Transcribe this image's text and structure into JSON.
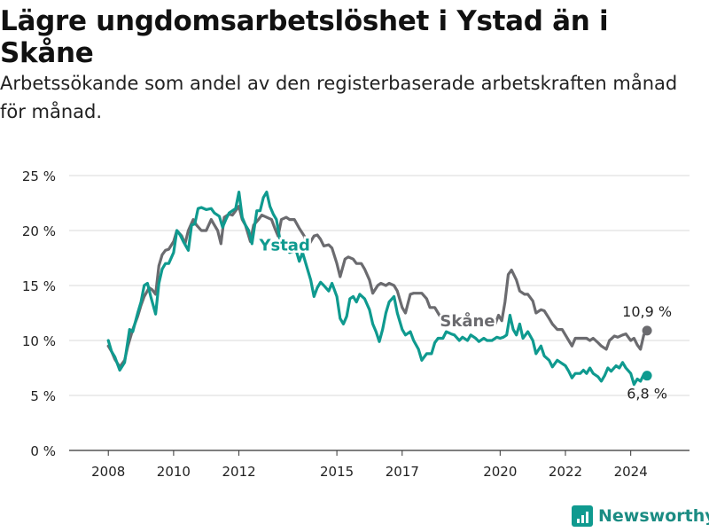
{
  "title": "Lägre ungdomsarbetslöshet i Ystad än i Skåne",
  "subtitle": "Arbetssökande som andel av den registerbaserade arbetskraften månad för månad.",
  "brand": "Newsworthy",
  "colors": {
    "ystad": "#0f9a8f",
    "skane": "#6b6b6f",
    "grid": "#d9d9d9",
    "axis": "#333333"
  },
  "chart_data": {
    "type": "line",
    "title": "Lägre ungdomsarbetslöshet i Ystad än i Skåne",
    "xlabel": "",
    "ylabel": "",
    "xlim": [
      2006.8,
      2025.8
    ],
    "ylim": [
      0,
      25
    ],
    "yticks": [
      {
        "value": 0,
        "label": "0 %"
      },
      {
        "value": 5,
        "label": "5 %"
      },
      {
        "value": 10,
        "label": "10 %"
      },
      {
        "value": 15,
        "label": "15 %"
      },
      {
        "value": 20,
        "label": "20 %"
      },
      {
        "value": 25,
        "label": "25 %"
      }
    ],
    "xticks": [
      {
        "value": 2008,
        "label": "2008"
      },
      {
        "value": 2010,
        "label": "2010"
      },
      {
        "value": 2012,
        "label": "2012"
      },
      {
        "value": 2015,
        "label": "2015"
      },
      {
        "value": 2017,
        "label": "2017"
      },
      {
        "value": 2020,
        "label": "2020"
      },
      {
        "value": 2022,
        "label": "2022"
      },
      {
        "value": 2024,
        "label": "2024"
      }
    ],
    "grid": true,
    "series": [
      {
        "name": "Skåne",
        "label": "Skåne",
        "end_label": "10,9 %",
        "end_value": 10.9,
        "points": [
          [
            2008.0,
            9.5
          ],
          [
            2008.1,
            9.0
          ],
          [
            2008.2,
            8.3
          ],
          [
            2008.35,
            7.6
          ],
          [
            2008.5,
            8.2
          ],
          [
            2008.6,
            9.5
          ],
          [
            2008.75,
            11.0
          ],
          [
            2008.9,
            12.2
          ],
          [
            2009.0,
            13.2
          ],
          [
            2009.1,
            14.0
          ],
          [
            2009.25,
            14.8
          ],
          [
            2009.35,
            14.6
          ],
          [
            2009.45,
            14.2
          ],
          [
            2009.55,
            16.8
          ],
          [
            2009.65,
            17.8
          ],
          [
            2009.75,
            18.2
          ],
          [
            2009.85,
            18.3
          ],
          [
            2010.0,
            19.0
          ],
          [
            2010.1,
            20.0
          ],
          [
            2010.25,
            19.5
          ],
          [
            2010.35,
            18.8
          ],
          [
            2010.45,
            20.0
          ],
          [
            2010.6,
            21.0
          ],
          [
            2010.7,
            20.5
          ],
          [
            2010.85,
            20.0
          ],
          [
            2011.0,
            20.0
          ],
          [
            2011.15,
            21.0
          ],
          [
            2011.25,
            20.5
          ],
          [
            2011.35,
            20.0
          ],
          [
            2011.45,
            18.8
          ],
          [
            2011.55,
            21.2
          ],
          [
            2011.7,
            21.5
          ],
          [
            2011.8,
            21.4
          ],
          [
            2011.9,
            21.8
          ],
          [
            2012.0,
            22.2
          ],
          [
            2012.1,
            21.0
          ],
          [
            2012.2,
            20.5
          ],
          [
            2012.35,
            19.0
          ],
          [
            2012.45,
            20.5
          ],
          [
            2012.6,
            21.0
          ],
          [
            2012.7,
            21.4
          ],
          [
            2012.85,
            21.2
          ],
          [
            2013.0,
            21.0
          ],
          [
            2013.1,
            20.2
          ],
          [
            2013.2,
            19.5
          ],
          [
            2013.3,
            21.0
          ],
          [
            2013.45,
            21.2
          ],
          [
            2013.55,
            21.0
          ],
          [
            2013.7,
            21.0
          ],
          [
            2013.85,
            20.2
          ],
          [
            2014.0,
            19.5
          ],
          [
            2014.1,
            18.5
          ],
          [
            2014.2,
            19.0
          ],
          [
            2014.3,
            19.5
          ],
          [
            2014.4,
            19.6
          ],
          [
            2014.5,
            19.2
          ],
          [
            2014.6,
            18.6
          ],
          [
            2014.75,
            18.7
          ],
          [
            2014.85,
            18.4
          ],
          [
            2015.0,
            17.0
          ],
          [
            2015.1,
            15.8
          ],
          [
            2015.25,
            17.4
          ],
          [
            2015.35,
            17.6
          ],
          [
            2015.5,
            17.4
          ],
          [
            2015.6,
            17.0
          ],
          [
            2015.75,
            17.0
          ],
          [
            2015.85,
            16.5
          ],
          [
            2016.0,
            15.5
          ],
          [
            2016.1,
            14.3
          ],
          [
            2016.25,
            15.0
          ],
          [
            2016.35,
            15.2
          ],
          [
            2016.5,
            15.0
          ],
          [
            2016.6,
            15.2
          ],
          [
            2016.75,
            15.0
          ],
          [
            2016.85,
            14.5
          ],
          [
            2017.0,
            13.0
          ],
          [
            2017.1,
            12.5
          ],
          [
            2017.25,
            14.2
          ],
          [
            2017.35,
            14.3
          ],
          [
            2017.5,
            14.3
          ],
          [
            2017.6,
            14.3
          ],
          [
            2017.75,
            13.8
          ],
          [
            2017.85,
            13.0
          ],
          [
            2018.0,
            13.0
          ],
          [
            2018.1,
            12.5
          ],
          [
            2018.2,
            12.0
          ],
          [
            2019.85,
            11.5
          ],
          [
            2019.95,
            12.3
          ],
          [
            2020.05,
            11.8
          ],
          [
            2020.15,
            13.5
          ],
          [
            2020.25,
            16.0
          ],
          [
            2020.35,
            16.4
          ],
          [
            2020.5,
            15.5
          ],
          [
            2020.6,
            14.5
          ],
          [
            2020.75,
            14.2
          ],
          [
            2020.85,
            14.2
          ],
          [
            2021.0,
            13.6
          ],
          [
            2021.1,
            12.5
          ],
          [
            2021.25,
            12.8
          ],
          [
            2021.35,
            12.7
          ],
          [
            2021.5,
            12.0
          ],
          [
            2021.6,
            11.5
          ],
          [
            2021.75,
            11.0
          ],
          [
            2021.9,
            11.0
          ],
          [
            2022.0,
            10.5
          ],
          [
            2022.1,
            10.0
          ],
          [
            2022.2,
            9.5
          ],
          [
            2022.3,
            10.2
          ],
          [
            2022.5,
            10.2
          ],
          [
            2022.65,
            10.2
          ],
          [
            2022.75,
            10.0
          ],
          [
            2022.85,
            10.2
          ],
          [
            2023.0,
            9.8
          ],
          [
            2023.1,
            9.5
          ],
          [
            2023.25,
            9.2
          ],
          [
            2023.35,
            10.0
          ],
          [
            2023.5,
            10.4
          ],
          [
            2023.6,
            10.3
          ],
          [
            2023.75,
            10.5
          ],
          [
            2023.85,
            10.6
          ],
          [
            2024.0,
            10.0
          ],
          [
            2024.1,
            10.2
          ],
          [
            2024.2,
            9.6
          ],
          [
            2024.3,
            9.2
          ],
          [
            2024.4,
            10.5
          ],
          [
            2024.5,
            10.9
          ]
        ]
      },
      {
        "name": "Ystad",
        "label": "Ystad",
        "end_label": "6,8 %",
        "end_value": 6.8,
        "points": [
          [
            2008.0,
            10.0
          ],
          [
            2008.1,
            9.0
          ],
          [
            2008.2,
            8.5
          ],
          [
            2008.35,
            7.3
          ],
          [
            2008.5,
            8.0
          ],
          [
            2008.65,
            11.0
          ],
          [
            2008.75,
            10.8
          ],
          [
            2008.9,
            12.5
          ],
          [
            2009.0,
            13.5
          ],
          [
            2009.1,
            15.0
          ],
          [
            2009.2,
            15.2
          ],
          [
            2009.3,
            14.0
          ],
          [
            2009.45,
            12.4
          ],
          [
            2009.55,
            15.2
          ],
          [
            2009.65,
            16.5
          ],
          [
            2009.75,
            17.0
          ],
          [
            2009.85,
            17.0
          ],
          [
            2010.0,
            18.0
          ],
          [
            2010.1,
            20.0
          ],
          [
            2010.2,
            19.6
          ],
          [
            2010.3,
            19.0
          ],
          [
            2010.45,
            18.2
          ],
          [
            2010.55,
            20.5
          ],
          [
            2010.65,
            20.6
          ],
          [
            2010.75,
            22.0
          ],
          [
            2010.85,
            22.1
          ],
          [
            2011.0,
            21.9
          ],
          [
            2011.15,
            22.0
          ],
          [
            2011.25,
            21.6
          ],
          [
            2011.4,
            21.3
          ],
          [
            2011.5,
            20.3
          ],
          [
            2011.6,
            21.0
          ],
          [
            2011.7,
            21.6
          ],
          [
            2011.8,
            21.8
          ],
          [
            2011.9,
            22.0
          ],
          [
            2012.0,
            23.5
          ],
          [
            2012.1,
            21.2
          ],
          [
            2012.2,
            20.5
          ],
          [
            2012.3,
            20.0
          ],
          [
            2012.4,
            18.8
          ],
          [
            2012.55,
            21.8
          ],
          [
            2012.65,
            21.8
          ],
          [
            2012.75,
            23.0
          ],
          [
            2012.85,
            23.5
          ],
          [
            2012.95,
            22.2
          ],
          [
            2013.05,
            21.5
          ],
          [
            2013.15,
            21.0
          ],
          [
            2013.25,
            19.3
          ],
          [
            2013.4,
            19.0
          ],
          [
            2013.55,
            18.0
          ],
          [
            2013.75,
            18.2
          ],
          [
            2013.85,
            17.2
          ],
          [
            2013.95,
            18.0
          ],
          [
            2014.1,
            16.5
          ],
          [
            2014.2,
            15.5
          ],
          [
            2014.3,
            14.0
          ],
          [
            2014.4,
            14.8
          ],
          [
            2014.5,
            15.3
          ],
          [
            2014.6,
            15.0
          ],
          [
            2014.75,
            14.5
          ],
          [
            2014.85,
            15.2
          ],
          [
            2015.0,
            14.0
          ],
          [
            2015.1,
            12.0
          ],
          [
            2015.2,
            11.5
          ],
          [
            2015.3,
            12.2
          ],
          [
            2015.4,
            13.8
          ],
          [
            2015.5,
            14.0
          ],
          [
            2015.6,
            13.5
          ],
          [
            2015.7,
            14.2
          ],
          [
            2015.85,
            13.8
          ],
          [
            2016.0,
            12.8
          ],
          [
            2016.1,
            11.5
          ],
          [
            2016.2,
            10.8
          ],
          [
            2016.3,
            9.9
          ],
          [
            2016.4,
            11.0
          ],
          [
            2016.5,
            12.5
          ],
          [
            2016.6,
            13.5
          ],
          [
            2016.75,
            14.0
          ],
          [
            2016.85,
            12.5
          ],
          [
            2017.0,
            11.0
          ],
          [
            2017.1,
            10.5
          ],
          [
            2017.25,
            10.8
          ],
          [
            2017.35,
            10.0
          ],
          [
            2017.5,
            9.2
          ],
          [
            2017.6,
            8.2
          ],
          [
            2017.75,
            8.8
          ],
          [
            2017.9,
            8.8
          ],
          [
            2018.0,
            9.8
          ],
          [
            2018.1,
            10.2
          ],
          [
            2018.25,
            10.2
          ],
          [
            2018.35,
            10.8
          ],
          [
            2018.5,
            10.6
          ],
          [
            2018.6,
            10.5
          ],
          [
            2018.75,
            10.0
          ],
          [
            2018.85,
            10.3
          ],
          [
            2019.0,
            10.0
          ],
          [
            2019.1,
            10.5
          ],
          [
            2019.25,
            10.2
          ],
          [
            2019.35,
            9.9
          ],
          [
            2019.5,
            10.2
          ],
          [
            2019.6,
            10.0
          ],
          [
            2019.75,
            10.0
          ],
          [
            2019.9,
            10.3
          ],
          [
            2020.0,
            10.2
          ],
          [
            2020.1,
            10.3
          ],
          [
            2020.2,
            10.5
          ],
          [
            2020.3,
            12.3
          ],
          [
            2020.4,
            11.0
          ],
          [
            2020.5,
            10.5
          ],
          [
            2020.6,
            11.5
          ],
          [
            2020.7,
            10.2
          ],
          [
            2020.85,
            10.8
          ],
          [
            2021.0,
            10.0
          ],
          [
            2021.1,
            8.8
          ],
          [
            2021.25,
            9.5
          ],
          [
            2021.35,
            8.6
          ],
          [
            2021.5,
            8.2
          ],
          [
            2021.6,
            7.6
          ],
          [
            2021.75,
            8.2
          ],
          [
            2021.85,
            8.0
          ],
          [
            2022.0,
            7.7
          ],
          [
            2022.1,
            7.2
          ],
          [
            2022.2,
            6.6
          ],
          [
            2022.3,
            7.0
          ],
          [
            2022.45,
            7.0
          ],
          [
            2022.55,
            7.3
          ],
          [
            2022.65,
            7.0
          ],
          [
            2022.75,
            7.5
          ],
          [
            2022.85,
            7.0
          ],
          [
            2023.0,
            6.7
          ],
          [
            2023.1,
            6.3
          ],
          [
            2023.2,
            6.8
          ],
          [
            2023.3,
            7.5
          ],
          [
            2023.4,
            7.2
          ],
          [
            2023.55,
            7.7
          ],
          [
            2023.65,
            7.5
          ],
          [
            2023.75,
            8.0
          ],
          [
            2023.85,
            7.5
          ],
          [
            2024.0,
            7.0
          ],
          [
            2024.1,
            6.0
          ],
          [
            2024.2,
            6.5
          ],
          [
            2024.3,
            6.3
          ],
          [
            2024.4,
            6.9
          ],
          [
            2024.5,
            6.8
          ]
        ]
      }
    ]
  }
}
